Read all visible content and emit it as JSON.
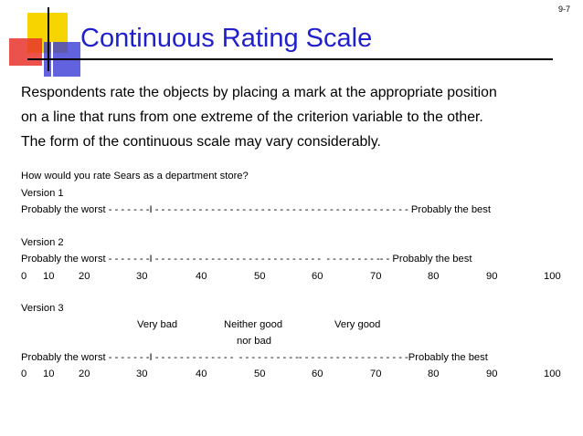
{
  "slide_number": "9-7",
  "title": "Continuous Rating Scale",
  "intro_lines": [
    "Respondents rate the objects by placing a mark at the appropriate position",
    "on a line that runs from one extreme of the criterion variable to the other.",
    "The form of the continuous scale may vary considerably."
  ],
  "question": "How would you rate Sears as a department store?",
  "version1": {
    "label": "Version 1",
    "line": "Probably the worst - - - - - - -I - - - - - - - - - - - - - - - - - - - - - - - - - - - - - - - - - - - - - - - - - Probably the best"
  },
  "version2": {
    "label": "Version 2",
    "line": "Probably the worst - - - - - - -I - - - - - - - - - - - - - - - - - - - - - - - - - - -  - - - - - - - - -- - Probably the best",
    "numbers": [
      "0",
      "10",
      "20",
      "30",
      "40",
      "50",
      "60",
      "70",
      "80",
      "90",
      "100"
    ]
  },
  "version3": {
    "label": "Version 3",
    "anchors": [
      "Very bad",
      "Neither good",
      "nor bad",
      "Very good"
    ],
    "line": "Probably the worst - - - - - - -I - - - - - - - - - - - - -  - - - - - - - - - -- - - - - - - - - - - - - - - - - -Probably the best",
    "numbers": [
      "0",
      "10",
      "20",
      "30",
      "40",
      "50",
      "60",
      "70",
      "80",
      "90",
      "100"
    ]
  },
  "colors": {
    "title": "#1f1fcc",
    "logo_yellow": "#f5d400",
    "logo_red": "#e8342c",
    "logo_blue": "#3b3bd6"
  }
}
